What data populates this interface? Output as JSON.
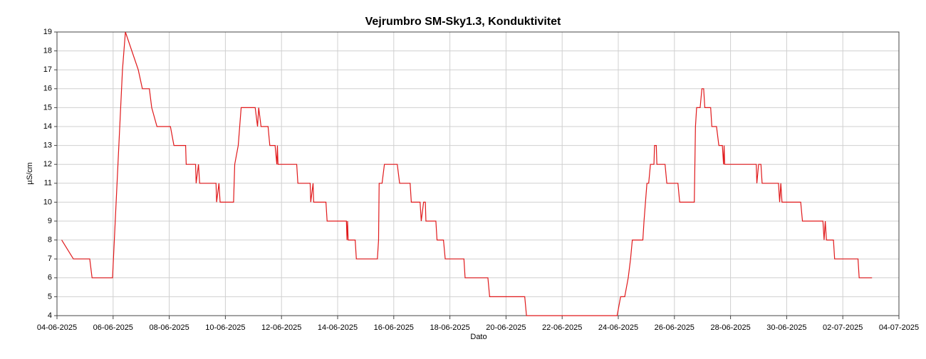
{
  "chart_data": {
    "type": "line",
    "title": "Vejrumbro SM-Sky1.3, Konduktivitet",
    "x_label": "Dato",
    "y_label": "µS/cm",
    "color": "#e0191b",
    "grid": true,
    "xlim": [
      "2025-06-04 00:00",
      "2025-07-04 00:00"
    ],
    "xticks": [
      {
        "value": "2025-06-04 00:00",
        "label": "04-06-2025"
      },
      {
        "value": "2025-06-06 00:00",
        "label": "06-06-2025"
      },
      {
        "value": "2025-06-08 00:00",
        "label": "08-06-2025"
      },
      {
        "value": "2025-06-10 00:00",
        "label": "10-06-2025"
      },
      {
        "value": "2025-06-12 00:00",
        "label": "12-06-2025"
      },
      {
        "value": "2025-06-14 00:00",
        "label": "14-06-2025"
      },
      {
        "value": "2025-06-16 00:00",
        "label": "16-06-2025"
      },
      {
        "value": "2025-06-18 00:00",
        "label": "18-06-2025"
      },
      {
        "value": "2025-06-20 00:00",
        "label": "20-06-2025"
      },
      {
        "value": "2025-06-22 00:00",
        "label": "22-06-2025"
      },
      {
        "value": "2025-06-24 00:00",
        "label": "24-06-2025"
      },
      {
        "value": "2025-06-26 00:00",
        "label": "26-06-2025"
      },
      {
        "value": "2025-06-28 00:00",
        "label": "28-06-2025"
      },
      {
        "value": "2025-06-30 00:00",
        "label": "30-06-2025"
      },
      {
        "value": "2025-07-02 00:00",
        "label": "02-07-2025"
      },
      {
        "value": "2025-07-04 00:00",
        "label": "04-07-2025"
      }
    ],
    "ylim": [
      4,
      19
    ],
    "yticks": [
      4,
      5,
      6,
      7,
      8,
      9,
      10,
      11,
      12,
      13,
      14,
      15,
      16,
      17,
      18,
      19
    ],
    "x": [
      "2025-06-04 04:00",
      "2025-06-04 14:00",
      "2025-06-05 04:00",
      "2025-06-05 06:00",
      "2025-06-05 23:30",
      "2025-06-06 08:00",
      "2025-06-06 10:30",
      "2025-06-06 21:30",
      "2025-06-07 01:00",
      "2025-06-07 07:00",
      "2025-06-07 09:00",
      "2025-06-07 13:30",
      "2025-06-08 01:00",
      "2025-06-08 04:00",
      "2025-06-08 14:00",
      "2025-06-08 14:30",
      "2025-06-08 22:30",
      "2025-06-08 23:00",
      "2025-06-09 01:00",
      "2025-06-09 02:00",
      "2025-06-09 16:00",
      "2025-06-09 16:30",
      "2025-06-09 18:30",
      "2025-06-09 19:30",
      "2025-06-10 07:00",
      "2025-06-10 08:00",
      "2025-06-10 11:00",
      "2025-06-10 13:30",
      "2025-06-11 01:30",
      "2025-06-11 03:30",
      "2025-06-11 04:30",
      "2025-06-11 06:30",
      "2025-06-11 12:30",
      "2025-06-11 14:00",
      "2025-06-11 18:30",
      "2025-06-11 20:00",
      "2025-06-11 20:30",
      "2025-06-11 21:00",
      "2025-06-12 13:00",
      "2025-06-12 14:00",
      "2025-06-13 00:30",
      "2025-06-13 01:00",
      "2025-06-13 03:00",
      "2025-06-13 03:30",
      "2025-06-13 14:00",
      "2025-06-13 15:00",
      "2025-06-14 07:30",
      "2025-06-14 08:00",
      "2025-06-14 08:30",
      "2025-06-14 09:00",
      "2025-06-14 15:00",
      "2025-06-14 16:00",
      "2025-06-15 10:00",
      "2025-06-15 11:00",
      "2025-06-15 11:30",
      "2025-06-15 14:00",
      "2025-06-15 16:00",
      "2025-06-16 03:00",
      "2025-06-16 05:00",
      "2025-06-16 14:00",
      "2025-06-16 15:00",
      "2025-06-16 22:30",
      "2025-06-16 23:30",
      "2025-06-17 01:30",
      "2025-06-17 03:00",
      "2025-06-17 03:30",
      "2025-06-17 12:00",
      "2025-06-17 13:00",
      "2025-06-17 18:30",
      "2025-06-17 20:00",
      "2025-06-18 12:00",
      "2025-06-18 13:00",
      "2025-06-19 08:30",
      "2025-06-19 10:00",
      "2025-06-20 16:00",
      "2025-06-20 17:30",
      "2025-06-23 23:00",
      "2025-06-24 02:00",
      "2025-06-24 05:30",
      "2025-06-24 08:30",
      "2025-06-24 10:30",
      "2025-06-24 12:00",
      "2025-06-24 21:00",
      "2025-06-24 22:00",
      "2025-06-25 00:30",
      "2025-06-25 02:00",
      "2025-06-25 03:30",
      "2025-06-25 06:30",
      "2025-06-25 07:00",
      "2025-06-25 08:30",
      "2025-06-25 09:00",
      "2025-06-25 16:00",
      "2025-06-25 17:30",
      "2025-06-26 03:00",
      "2025-06-26 04:30",
      "2025-06-26 17:00",
      "2025-06-26 18:00",
      "2025-06-26 19:00",
      "2025-06-26 22:00",
      "2025-06-26 23:30",
      "2025-06-27 01:00",
      "2025-06-27 02:00",
      "2025-06-27 07:00",
      "2025-06-27 08:00",
      "2025-06-27 12:00",
      "2025-06-27 14:00",
      "2025-06-27 17:00",
      "2025-06-27 18:00",
      "2025-06-27 18:30",
      "2025-06-27 19:00",
      "2025-06-28 22:00",
      "2025-06-28 22:30",
      "2025-06-29 00:00",
      "2025-06-29 02:00",
      "2025-06-29 03:00",
      "2025-06-29 17:00",
      "2025-06-29 18:00",
      "2025-06-29 19:00",
      "2025-06-29 20:00",
      "2025-06-30 12:00",
      "2025-06-30 13:30",
      "2025-07-01 07:00",
      "2025-07-01 08:00",
      "2025-07-01 09:00",
      "2025-07-01 10:00",
      "2025-07-01 16:00",
      "2025-07-01 17:00",
      "2025-07-02 13:00",
      "2025-07-02 14:00",
      "2025-07-03 01:00"
    ],
    "values": [
      8,
      7,
      7,
      6,
      6,
      17,
      19,
      17,
      16,
      16,
      15,
      14,
      14,
      13,
      13,
      12,
      12,
      11,
      12,
      11,
      11,
      10,
      11,
      10,
      10,
      12,
      13,
      15,
      15,
      14,
      15,
      14,
      14,
      13,
      13,
      12,
      13,
      12,
      12,
      11,
      11,
      10,
      11,
      10,
      10,
      9,
      9,
      8,
      9,
      8,
      8,
      7,
      7,
      8,
      11,
      11,
      12,
      12,
      11,
      11,
      10,
      10,
      9,
      10,
      10,
      9,
      9,
      8,
      8,
      7,
      7,
      6,
      6,
      5,
      5,
      4,
      4,
      5,
      5,
      6,
      7,
      8,
      8,
      9,
      11,
      11,
      12,
      12,
      13,
      13,
      12,
      12,
      11,
      11,
      10,
      10,
      14,
      15,
      15,
      16,
      16,
      15,
      15,
      14,
      14,
      13,
      13,
      12,
      13,
      12,
      12,
      11,
      12,
      12,
      11,
      11,
      10,
      11,
      10,
      10,
      9,
      9,
      8,
      9,
      8,
      8,
      7,
      7,
      6,
      6
    ]
  }
}
